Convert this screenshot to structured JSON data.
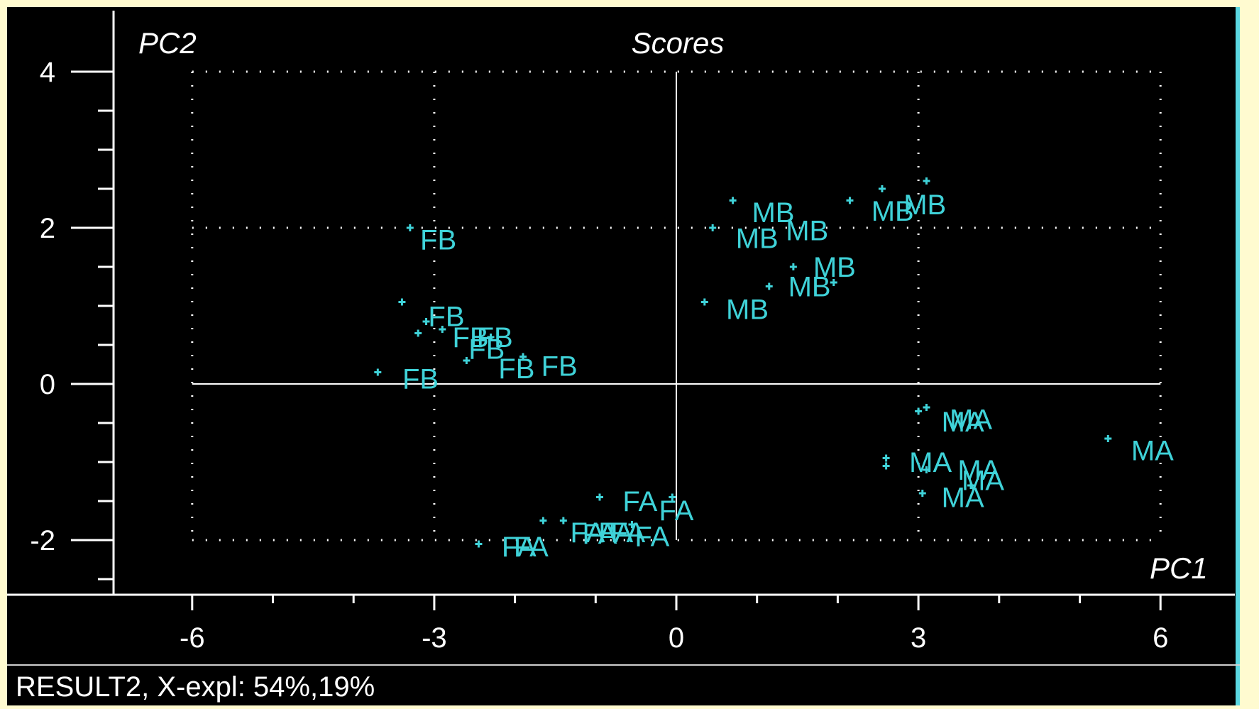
{
  "status": {
    "text": "RESULT2, X-expl: 54%,19%"
  },
  "colors": {
    "background": "#000000",
    "axes": "#ffffff",
    "points": "#3fd2d8",
    "grid": "#ffffff"
  },
  "chart_data": {
    "type": "scatter",
    "title": "Scores",
    "xlabel": "PC1",
    "ylabel": "PC2",
    "xlim": [
      -6,
      6
    ],
    "ylim": [
      -2,
      4
    ],
    "xticks": [
      "-6",
      "-3",
      "0",
      "3",
      "6"
    ],
    "yticks": [
      "4",
      "2",
      "0",
      "-2"
    ],
    "grid": true,
    "points": [
      {
        "x": -3.3,
        "y": 2.0,
        "label": "FB"
      },
      {
        "x": -3.4,
        "y": 1.05,
        "label": "FB"
      },
      {
        "x": -3.1,
        "y": 0.8,
        "label": "FB"
      },
      {
        "x": -3.2,
        "y": 0.65,
        "label": "FB"
      },
      {
        "x": -2.9,
        "y": 0.7,
        "label": "FB"
      },
      {
        "x": -3.7,
        "y": 0.15,
        "label": "FB"
      },
      {
        "x": -2.6,
        "y": 0.3,
        "label": "FB"
      },
      {
        "x": -2.3,
        "y": 0.6,
        "label": "FB"
      },
      {
        "x": -1.9,
        "y": 0.35,
        "label": "FB"
      },
      {
        "x": 0.7,
        "y": 2.35,
        "label": "MB"
      },
      {
        "x": 0.45,
        "y": 2.0,
        "label": "MB"
      },
      {
        "x": 2.15,
        "y": 2.35,
        "label": "MB"
      },
      {
        "x": 2.55,
        "y": 2.5,
        "label": "MB"
      },
      {
        "x": 3.1,
        "y": 2.6,
        "label": "MB"
      },
      {
        "x": 1.45,
        "y": 1.5,
        "label": "MB"
      },
      {
        "x": 1.95,
        "y": 1.3,
        "label": "MB"
      },
      {
        "x": 0.35,
        "y": 1.05,
        "label": "MB"
      },
      {
        "x": 1.15,
        "y": 1.25,
        "label": "MB"
      },
      {
        "x": 3.1,
        "y": -0.3,
        "label": "MA"
      },
      {
        "x": 3.0,
        "y": -0.35,
        "label": "MA"
      },
      {
        "x": 5.35,
        "y": -0.7,
        "label": "MA"
      },
      {
        "x": 2.6,
        "y": -0.95,
        "label": "MA"
      },
      {
        "x": 2.6,
        "y": -1.05,
        "label": "MA"
      },
      {
        "x": 3.1,
        "y": -1.1,
        "label": "MA"
      },
      {
        "x": 3.05,
        "y": -1.4,
        "label": "MA"
      },
      {
        "x": 3.65,
        "y": -1.3,
        "label": "MA"
      },
      {
        "x": -0.95,
        "y": -1.45,
        "label": "FA"
      },
      {
        "x": -0.05,
        "y": -1.45,
        "label": "FA"
      },
      {
        "x": -1.65,
        "y": -1.75,
        "label": "FA"
      },
      {
        "x": -1.4,
        "y": -1.75,
        "label": "FA"
      },
      {
        "x": -0.8,
        "y": -1.85,
        "label": "FA"
      },
      {
        "x": -0.55,
        "y": -1.8,
        "label": "FA"
      },
      {
        "x": -2.45,
        "y": -2.05,
        "label": "FA"
      }
    ],
    "labels_shown": [
      {
        "text": "FB",
        "x": -2.95,
        "y": 1.85
      },
      {
        "text": "FB",
        "x": -2.85,
        "y": 0.87
      },
      {
        "text": "FB",
        "x": -2.55,
        "y": 0.6
      },
      {
        "text": "FB",
        "x": -2.35,
        "y": 0.45
      },
      {
        "text": "FB",
        "x": -2.25,
        "y": 0.6
      },
      {
        "text": "FB",
        "x": -1.98,
        "y": 0.2
      },
      {
        "text": "FB",
        "x": -1.45,
        "y": 0.23
      },
      {
        "text": "FB",
        "x": -3.17,
        "y": 0.07
      },
      {
        "text": "MB",
        "x": 1.2,
        "y": 2.2
      },
      {
        "text": "MB",
        "x": 1.0,
        "y": 1.87
      },
      {
        "text": "MB",
        "x": 1.62,
        "y": 1.97
      },
      {
        "text": "MB",
        "x": 2.68,
        "y": 2.22
      },
      {
        "text": "MB",
        "x": 3.08,
        "y": 2.3
      },
      {
        "text": "MB",
        "x": 1.96,
        "y": 1.5
      },
      {
        "text": "MB",
        "x": 1.65,
        "y": 1.25
      },
      {
        "text": "MB",
        "x": 0.88,
        "y": 0.96
      },
      {
        "text": "MA",
        "x": 3.55,
        "y": -0.48
      },
      {
        "text": "MA",
        "x": 3.65,
        "y": -0.45
      },
      {
        "text": "MA",
        "x": 5.9,
        "y": -0.85
      },
      {
        "text": "MA",
        "x": 3.15,
        "y": -1.0
      },
      {
        "text": "MA",
        "x": 3.75,
        "y": -1.1
      },
      {
        "text": "MA",
        "x": 3.8,
        "y": -1.23
      },
      {
        "text": "MA",
        "x": 3.55,
        "y": -1.45
      },
      {
        "text": "FA",
        "x": -0.45,
        "y": -1.5
      },
      {
        "text": "FA",
        "x": 0.0,
        "y": -1.62
      },
      {
        "text": "FA",
        "x": -1.1,
        "y": -1.9
      },
      {
        "text": "FA",
        "x": -0.95,
        "y": -1.92
      },
      {
        "text": "FA",
        "x": -0.75,
        "y": -1.9
      },
      {
        "text": "FA",
        "x": -0.6,
        "y": -1.9
      },
      {
        "text": "FA",
        "x": -0.3,
        "y": -1.95
      },
      {
        "text": "FA",
        "x": -1.95,
        "y": -2.08
      },
      {
        "text": "FA",
        "x": -1.8,
        "y": -2.08
      }
    ]
  }
}
